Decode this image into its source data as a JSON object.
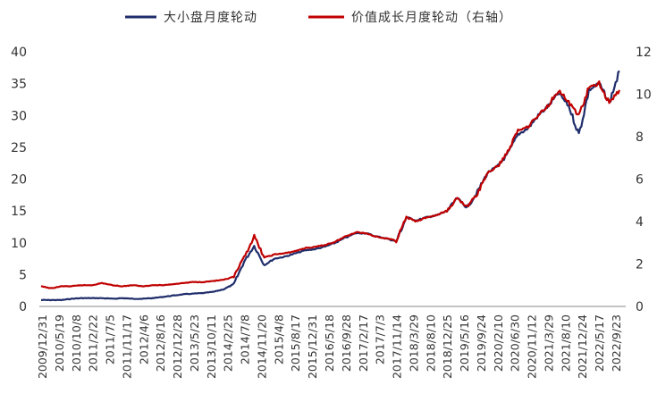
{
  "chart_data": {
    "type": "line",
    "title": "",
    "xlabel": "",
    "ylabel": "",
    "ylim": [
      0,
      40
    ],
    "y2lim": [
      0,
      12
    ],
    "y_ticks": [
      "0",
      "5",
      "10",
      "15",
      "20",
      "25",
      "30",
      "35",
      "40"
    ],
    "y2_ticks": [
      "0",
      "2",
      "4",
      "6",
      "8",
      "10",
      "12"
    ],
    "grid": false,
    "legend_position": "top",
    "x_ticks": [
      "2009/12/31",
      "2010/5/19",
      "2010/10/8",
      "2011/2/22",
      "2011/7/5",
      "2011/11/17",
      "2012/4/6",
      "2012/8/16",
      "2012/12/28",
      "2013/5/23",
      "2013/10/11",
      "2014/2/25",
      "2014/7/8",
      "2014/11/20",
      "2015/4/8",
      "2015/8/17",
      "2015/12/31",
      "2016/5/18",
      "2016/9/28",
      "2017/2/17",
      "2017/7/3",
      "2017/11/14",
      "2018/3/29",
      "2018/8/10",
      "2018/12/25",
      "2019/5/16",
      "2019/9/24",
      "2020/2/10",
      "2020/6/30",
      "2020/11/12",
      "2021/3/29",
      "2021/8/10",
      "2021/12/24",
      "2022/5/17",
      "2022/9/23"
    ],
    "series": [
      {
        "name": "大小盘月度轮动",
        "axis": "left",
        "color": "#1f2d6b",
        "values": [
          1.0,
          1.0,
          1.0,
          1.2,
          1.3,
          1.3,
          1.3,
          1.2,
          1.3,
          1.2,
          1.2,
          1.3,
          1.5,
          1.7,
          1.9,
          2.0,
          2.1,
          2.3,
          2.7,
          3.5,
          7.0,
          9.5,
          6.5,
          7.5,
          7.8,
          8.3,
          8.8,
          9.0,
          9.4,
          10.0,
          10.8,
          11.5,
          11.5,
          11.0,
          10.7,
          10.2,
          14.0,
          13.5,
          14.0,
          14.3,
          15.0,
          17.0,
          15.5,
          18.0,
          21.0,
          22.0,
          24.0,
          27.0,
          28.0,
          30.0,
          31.5,
          33.5,
          31.5,
          27.0,
          34.0,
          35.0,
          32.0,
          37.0
        ]
      },
      {
        "name": "价值成长月度轮动（右轴）",
        "axis": "right",
        "color": "#c00000",
        "values": [
          0.95,
          0.85,
          0.95,
          0.95,
          1.0,
          1.0,
          1.1,
          1.0,
          0.95,
          1.0,
          0.95,
          1.0,
          1.0,
          1.05,
          1.1,
          1.15,
          1.15,
          1.2,
          1.25,
          1.4,
          2.3,
          3.3,
          2.3,
          2.45,
          2.5,
          2.6,
          2.75,
          2.8,
          2.9,
          3.05,
          3.3,
          3.5,
          3.45,
          3.3,
          3.2,
          3.1,
          4.2,
          4.0,
          4.2,
          4.3,
          4.5,
          5.1,
          4.7,
          5.3,
          6.3,
          6.6,
          7.3,
          8.3,
          8.5,
          9.0,
          9.5,
          10.2,
          9.6,
          9.0,
          10.3,
          10.5,
          9.6,
          10.2
        ]
      }
    ]
  }
}
